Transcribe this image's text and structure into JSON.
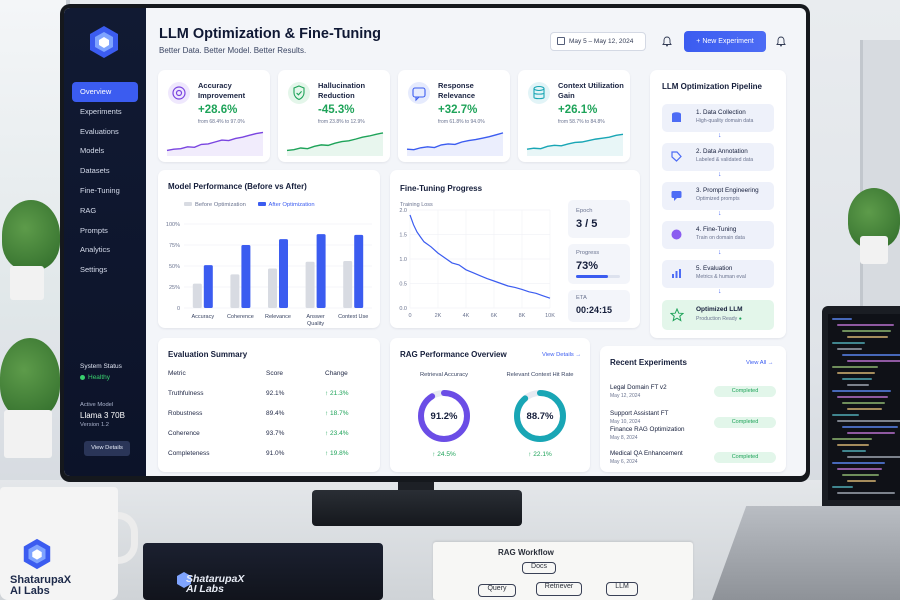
{
  "app": {
    "title": "LLM Optimization & Fine-Tuning",
    "subtitle": "Better Data. Better Model. Better Results.",
    "date_range": "May 5 – May 12, 2024",
    "new_experiment": "+  New Experiment"
  },
  "sidebar": {
    "items": [
      {
        "label": "Overview",
        "active": true
      },
      {
        "label": "Experiments"
      },
      {
        "label": "Evaluations"
      },
      {
        "label": "Models"
      },
      {
        "label": "Datasets"
      },
      {
        "label": "Fine-Tuning"
      },
      {
        "label": "RAG"
      },
      {
        "label": "Prompts"
      },
      {
        "label": "Analytics"
      },
      {
        "label": "Settings"
      }
    ],
    "system_status_label": "System Status",
    "system_status_value": "Healthy",
    "active_model_label": "Active Model",
    "active_model_name": "Llama 3 70B",
    "active_model_version": "Version 1.2",
    "view_details": "View Details"
  },
  "kpis": [
    {
      "title": "Accuracy\nImprovement",
      "value": "+28.6%",
      "sub": "from 68.4% to 97.0%",
      "color": "#7a45e0",
      "trend": [
        0.85,
        0.8,
        0.78,
        0.7,
        0.72,
        0.6,
        0.58,
        0.5,
        0.42,
        0.44,
        0.35,
        0.3,
        0.22,
        0.15,
        0.1
      ]
    },
    {
      "title": "Hallucination\nReduction",
      "value": "-45.3%",
      "sub": "from 23.8% to 12.9%",
      "color": "#1ea359",
      "trend": [
        0.85,
        0.82,
        0.75,
        0.78,
        0.68,
        0.62,
        0.64,
        0.55,
        0.48,
        0.45,
        0.38,
        0.3,
        0.25,
        0.18,
        0.12
      ]
    },
    {
      "title": "Response\nRelevance",
      "value": "+32.7%",
      "sub": "from 61.8% to 94.0%",
      "color": "#3b5cf0",
      "trend": [
        0.8,
        0.82,
        0.74,
        0.7,
        0.73,
        0.62,
        0.58,
        0.6,
        0.5,
        0.44,
        0.4,
        0.34,
        0.28,
        0.2,
        0.12
      ]
    },
    {
      "title": "Context Utilization\nGain",
      "value": "+26.1%",
      "sub": "from 58.7% to 84.8%",
      "color": "#19a6b5",
      "trend": [
        0.8,
        0.76,
        0.78,
        0.68,
        0.64,
        0.66,
        0.58,
        0.52,
        0.5,
        0.44,
        0.38,
        0.34,
        0.3,
        0.22,
        0.18
      ]
    }
  ],
  "performance": {
    "title": "Model Performance (Before vs After)",
    "legend_before": "Before Optimization",
    "legend_after": "After Optimization"
  },
  "chart_data": [
    {
      "type": "bar",
      "title": "Model Performance (Before vs After)",
      "categories": [
        "Accuracy",
        "Coherence",
        "Relevance",
        "Answer\nQuality",
        "Context Use"
      ],
      "series": [
        {
          "name": "Before Optimization",
          "values": [
            29,
            40,
            47,
            55,
            56
          ],
          "color": "#d8dbe2"
        },
        {
          "name": "After Optimization",
          "values": [
            51,
            75,
            82,
            88,
            87
          ],
          "color": "#3b5cf0"
        }
      ],
      "yticks": [
        "0",
        "25%",
        "50%",
        "75%",
        "100%"
      ],
      "ylim": [
        0,
        100
      ]
    },
    {
      "type": "line",
      "title": "Fine-Tuning Progress",
      "ylabel": "Training Loss",
      "x": [
        0,
        0.25,
        0.5,
        0.75,
        1,
        1.5,
        2,
        2.5,
        3,
        3.5,
        4,
        4.5,
        5,
        5.5,
        6,
        6.5,
        7,
        7.5,
        8,
        8.5,
        9,
        9.5,
        10
      ],
      "y": [
        1.9,
        1.7,
        1.55,
        1.45,
        1.35,
        1.25,
        1.12,
        1.02,
        0.92,
        0.88,
        0.78,
        0.72,
        0.66,
        0.6,
        0.55,
        0.5,
        0.45,
        0.42,
        0.38,
        0.33,
        0.3,
        0.25,
        0.2
      ],
      "xticks": [
        "0",
        "2K",
        "4K",
        "6K",
        "8K",
        "10K"
      ],
      "yticks": [
        "0.0",
        "0.5",
        "1.0",
        "1.5",
        "2.0"
      ],
      "xlim": [
        0,
        10
      ],
      "ylim": [
        0,
        2.0
      ]
    }
  ],
  "fine_tuning": {
    "title": "Fine-Tuning Progress",
    "epoch_label": "Epoch",
    "epoch_value": "3 / 5",
    "progress_label": "Progress",
    "progress_value": "73%",
    "progress": 0.73,
    "eta_label": "ETA",
    "eta_value": "00:24:15"
  },
  "pipeline": {
    "title": "LLM Optimization Pipeline",
    "steps": [
      {
        "title": "1. Data Collection",
        "sub": "High-quality domain data",
        "icon": "database-icon"
      },
      {
        "title": "2. Data Annotation",
        "sub": "Labeled & validated data",
        "icon": "tag-icon"
      },
      {
        "title": "3. Prompt Engineering",
        "sub": "Optimized prompts",
        "icon": "chat-icon"
      },
      {
        "title": "4. Fine-Tuning",
        "sub": "Train on domain data",
        "icon": "brain-icon"
      },
      {
        "title": "5. Evaluation",
        "sub": "Metrics & human eval",
        "icon": "bar-chart-icon"
      }
    ],
    "final_title": "Optimized LLM",
    "final_sub": "Production Ready"
  },
  "evaluation": {
    "title": "Evaluation Summary",
    "headers": [
      "Metric",
      "Score",
      "Change"
    ],
    "rows": [
      {
        "metric": "Truthfulness",
        "score": "92.1%",
        "change": "↑ 21.3%"
      },
      {
        "metric": "Robustness",
        "score": "89.4%",
        "change": "↑ 18.7%"
      },
      {
        "metric": "Coherence",
        "score": "93.7%",
        "change": "↑ 23.4%"
      },
      {
        "metric": "Completeness",
        "score": "91.0%",
        "change": "↑ 19.8%"
      }
    ]
  },
  "rag": {
    "title": "RAG Performance Overview",
    "view_details": "View Details →",
    "gauges": [
      {
        "label": "Retrieval Accuracy",
        "value": "91.2%",
        "fraction": 0.912,
        "change": "↑ 24.5%",
        "color": "#6b4de6"
      },
      {
        "label": "Relevant Context Hit Rate",
        "value": "88.7%",
        "fraction": 0.887,
        "change": "↑ 22.1%",
        "color": "#19a6b5"
      }
    ]
  },
  "experiments": {
    "title": "Recent Experiments",
    "view_all": "View All →",
    "items": [
      {
        "name": "Legal Domain FT v2",
        "date": "May 12, 2024",
        "status": "Completed"
      },
      {
        "name": "Support Assistant FT",
        "date": "May 10, 2024",
        "status": "Completed"
      },
      {
        "name": "Finance RAG Optimization",
        "date": "May 8, 2024",
        "status": ""
      },
      {
        "name": "Medical QA Enhancement",
        "date": "May 6, 2024",
        "status": "Completed"
      }
    ]
  },
  "props": {
    "mug_brand": "ShatarupaX\nAI Labs",
    "notebook_brand": "ShatarupaX\nAI Labs",
    "sketch_title": "RAG Workflow",
    "sketch_boxes": [
      "Query",
      "Retriever",
      "LLM",
      "Docs"
    ]
  }
}
